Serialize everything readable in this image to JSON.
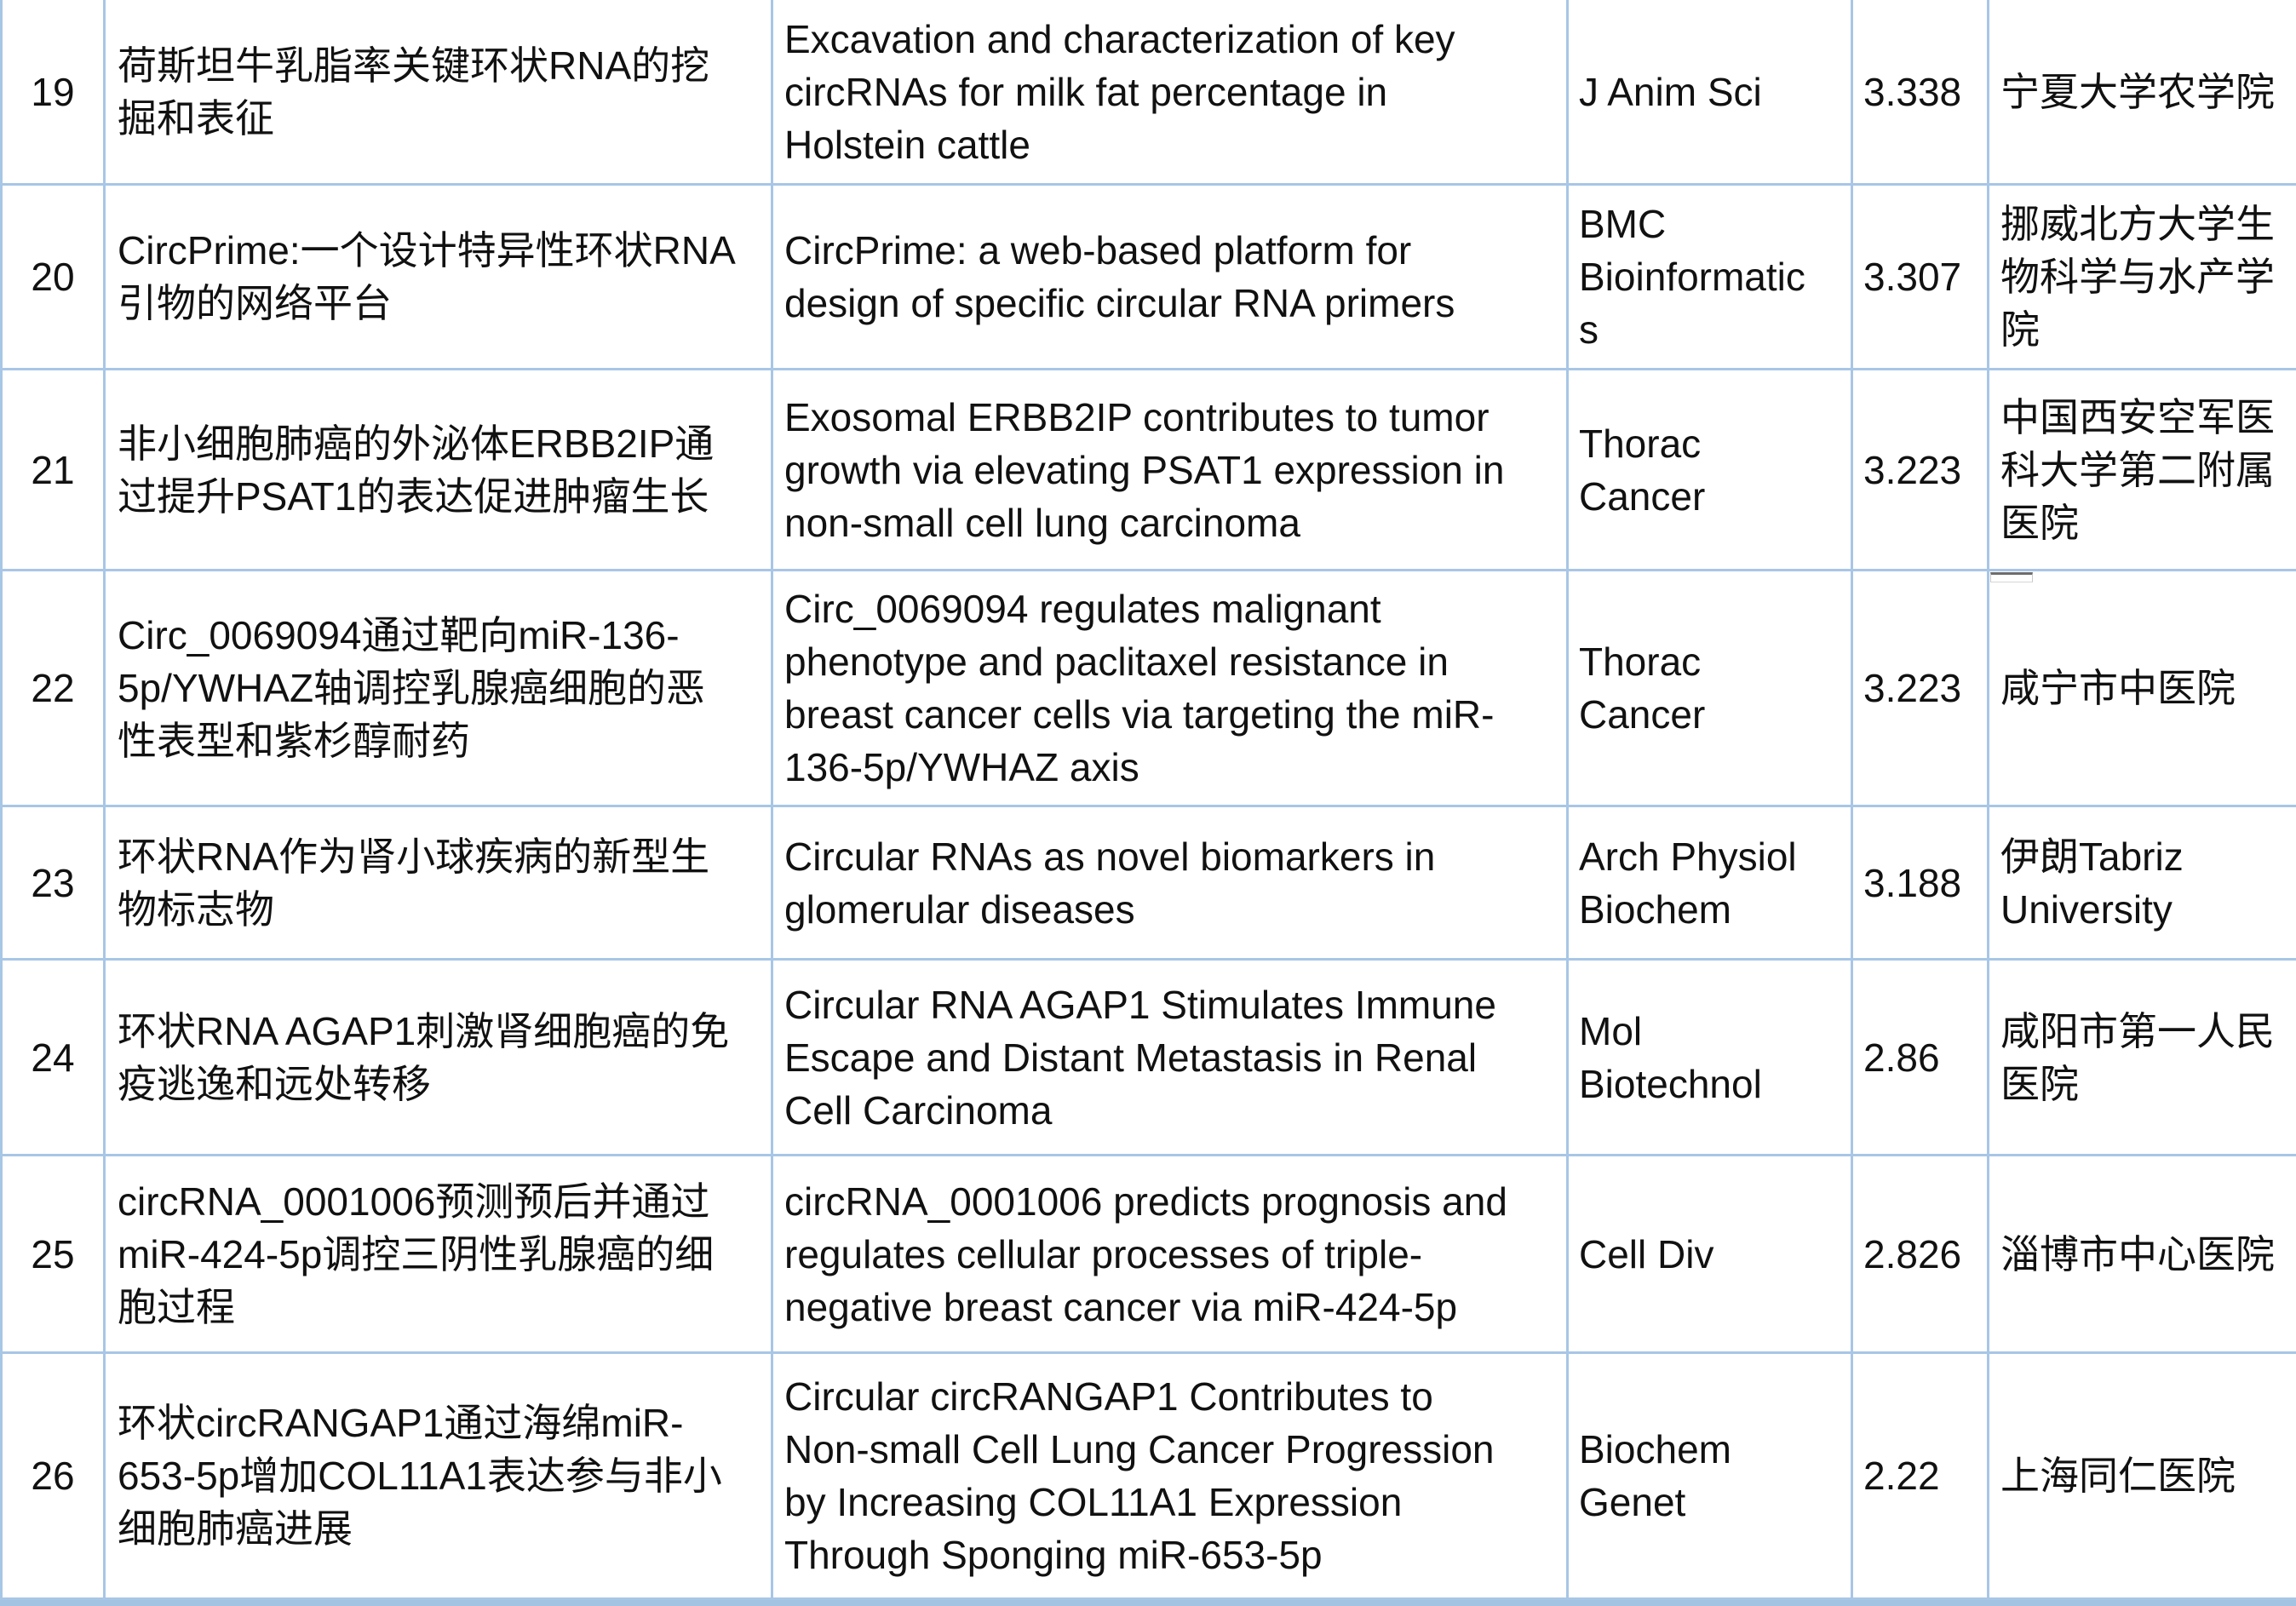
{
  "colors": {
    "border": "#a8c6e6",
    "bottom_bar": "#a4c3e3",
    "text": "#111111"
  },
  "table": {
    "rows": [
      {
        "num": "19",
        "title_zh": "荷斯坦牛乳脂率关键环状RNA的挖\n掘和表征",
        "title_en": "Excavation and characterization of key\ncircRNAs for milk fat percentage in\nHolstein cattle",
        "journal": "J Anim Sci",
        "impact_factor": "3.338",
        "institution": "宁夏大学农学院"
      },
      {
        "num": "20",
        "title_zh": "CircPrime:一个设计特异性环状RNA\n引物的网络平台",
        "title_en": "CircPrime: a web-based platform for\ndesign of specific circular RNA primers",
        "journal": "BMC\nBioinformatic\ns",
        "impact_factor": "3.307",
        "institution": "挪威北方大学生\n物科学与水产学\n院"
      },
      {
        "num": "21",
        "title_zh": "非小细胞肺癌的外泌体ERBB2IP通\n过提升PSAT1的表达促进肿瘤生长",
        "title_en": "Exosomal ERBB2IP contributes to tumor\ngrowth via elevating PSAT1 expression in\nnon-small cell lung carcinoma",
        "journal": "Thorac\nCancer",
        "impact_factor": "3.223",
        "institution": "中国西安空军医\n科大学第二附属\n医院"
      },
      {
        "num": "22",
        "title_zh": "Circ_0069094通过靶向miR-136-\n5p/YWHAZ轴调控乳腺癌细胞的恶\n性表型和紫杉醇耐药",
        "title_en": "Circ_0069094 regulates malignant\nphenotype and paclitaxel resistance in\nbreast cancer cells via targeting the miR-\n136-5p/YWHAZ axis",
        "journal": "Thorac\nCancer",
        "impact_factor": "3.223",
        "institution": "咸宁市中医院"
      },
      {
        "num": "23",
        "title_zh": "环状RNA作为肾小球疾病的新型生\n物标志物",
        "title_en": "Circular RNAs as novel biomarkers in\nglomerular diseases",
        "journal": "Arch Physiol\nBiochem",
        "impact_factor": "3.188",
        "institution": "伊朗Tabriz\nUniversity"
      },
      {
        "num": "24",
        "title_zh": "环状RNA AGAP1刺激肾细胞癌的免\n疫逃逸和远处转移",
        "title_en": "Circular RNA AGAP1 Stimulates Immune\nEscape and Distant Metastasis in Renal\nCell Carcinoma",
        "journal": "Mol\nBiotechnol",
        "impact_factor": "2.86",
        "institution": "咸阳市第一人民\n医院"
      },
      {
        "num": "25",
        "title_zh": "circRNA_0001006预测预后并通过\nmiR-424-5p调控三阴性乳腺癌的细\n胞过程",
        "title_en": "circRNA_0001006 predicts prognosis and\nregulates cellular processes of triple-\nnegative breast cancer via miR-424-5p",
        "journal": "Cell Div",
        "impact_factor": "2.826",
        "institution": "淄博市中心医院"
      },
      {
        "num": "26",
        "title_zh": "环状circRANGAP1通过海绵miR-\n653-5p增加COL11A1表达参与非小\n细胞肺癌进展",
        "title_en": "Circular circRANGAP1 Contributes to\nNon-small Cell Lung Cancer Progression\nby Increasing COL11A1 Expression\nThrough Sponging miR-653-5p",
        "journal": "Biochem\nGenet",
        "impact_factor": "2.22",
        "institution": "上海同仁医院"
      }
    ]
  }
}
